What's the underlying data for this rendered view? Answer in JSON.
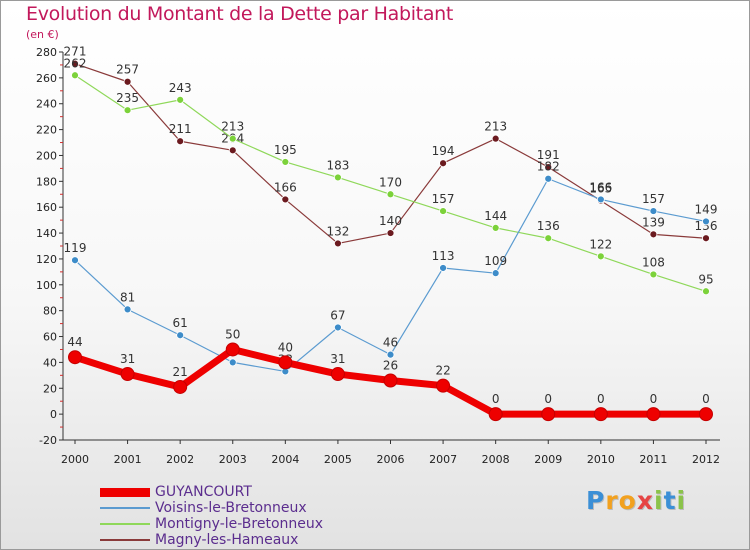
{
  "title": "Evolution du Montant de la Dette par Habitant",
  "subtitle": "(en €)",
  "logo": {
    "letters": [
      "P",
      "r",
      "o",
      "x",
      "i",
      "t",
      "i"
    ],
    "colors": [
      "#3b8fd6",
      "#f2a11f",
      "#f2a11f",
      "#e64545",
      "#8bc34a",
      "#3b8fd6",
      "#8bc34a"
    ]
  },
  "chart_data": {
    "type": "line",
    "x": [
      2000,
      2001,
      2002,
      2003,
      2004,
      2005,
      2006,
      2007,
      2008,
      2009,
      2010,
      2011,
      2012
    ],
    "y_ticks": [
      -20,
      0,
      20,
      40,
      60,
      80,
      100,
      120,
      140,
      160,
      180,
      200,
      220,
      240,
      260,
      280
    ],
    "ylim": [
      -20,
      280
    ],
    "grid": false,
    "legend_position": "bottom-left",
    "series": [
      {
        "name": "Magny-les-Hameaux",
        "color": "#6b1a1f",
        "line_color": "#8a3a3a",
        "values": [
          271,
          257,
          211,
          204,
          166,
          132,
          140,
          194,
          213,
          191,
          165,
          139,
          136
        ]
      },
      {
        "name": "Montigny-le-Bretonneux",
        "color": "#7cd23a",
        "line_color": "#8fd85a",
        "values": [
          262,
          235,
          243,
          213,
          195,
          183,
          170,
          157,
          144,
          136,
          122,
          108,
          95
        ]
      },
      {
        "name": "Voisins-le-Bretonneux",
        "color": "#3d8cc9",
        "line_color": "#5b9bd0",
        "values": [
          119,
          81,
          61,
          40,
          33,
          67,
          46,
          113,
          109,
          182,
          166,
          157,
          149
        ]
      },
      {
        "name": "GUYANCOURT",
        "color": "#ee0000",
        "line_color": "#ee0000",
        "values": [
          44,
          31,
          21,
          50,
          40,
          31,
          26,
          22,
          0,
          0,
          0,
          0,
          0
        ]
      }
    ],
    "legend_order": [
      "GUYANCOURT",
      "Voisins-le-Bretonneux",
      "Montigny-le-Bretonneux",
      "Magny-les-Hameaux"
    ]
  }
}
